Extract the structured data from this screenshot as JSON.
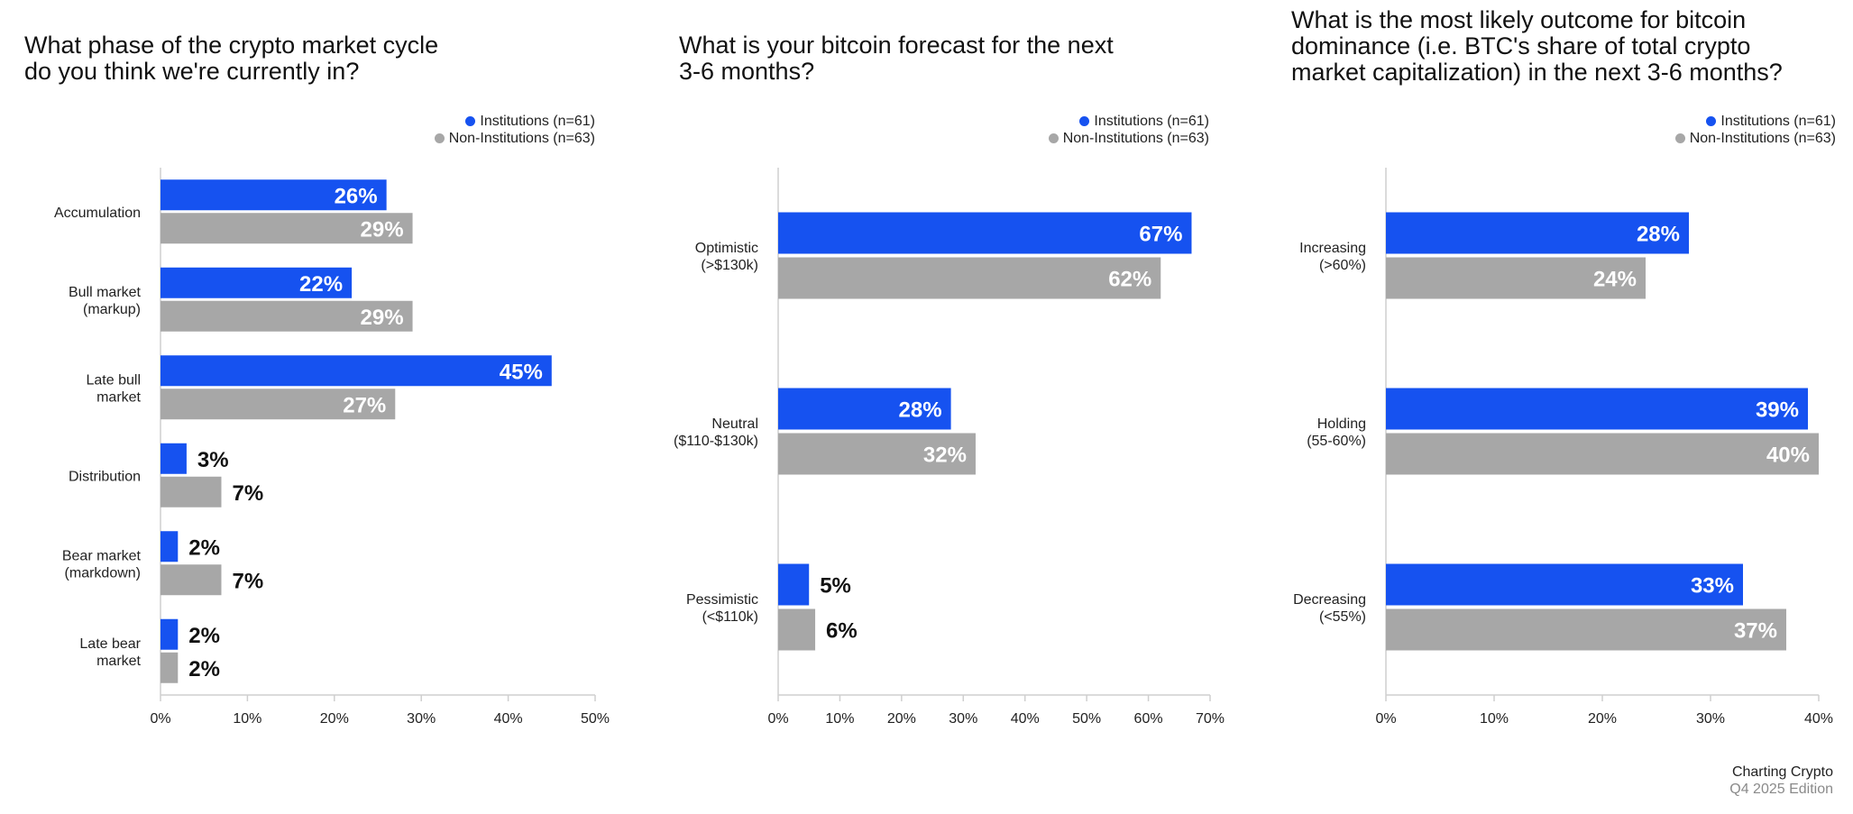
{
  "colors": {
    "institutions": "#1652f0",
    "non_institutions": "#a7a7a7",
    "axis": "#cfcfcf"
  },
  "legend": {
    "institutions": "Institutions (n=61)",
    "non_institutions": "Non-Institutions (n=63)"
  },
  "footer": {
    "line1": "Charting Crypto",
    "line2": "Q4 2025 Edition"
  },
  "chart_data": [
    {
      "type": "bar",
      "orientation": "horizontal",
      "title": "What phase of the crypto market cycle\ndo you think we're currently in?",
      "categories": [
        "Accumulation",
        "Bull market\n(markup)",
        "Late bull\nmarket",
        "Distribution",
        "Bear market\n(markdown)",
        "Late bear\nmarket"
      ],
      "series": [
        {
          "name": "Institutions (n=61)",
          "values": [
            26,
            22,
            45,
            3,
            2,
            2
          ]
        },
        {
          "name": "Non-Institutions (n=63)",
          "values": [
            29,
            29,
            27,
            7,
            7,
            2
          ]
        }
      ],
      "xlim": [
        0,
        50
      ],
      "ticks": [
        "0%",
        "10%",
        "20%",
        "30%",
        "40%",
        "50%"
      ],
      "value_suffix": "%",
      "legend_position": "top-right"
    },
    {
      "type": "bar",
      "orientation": "horizontal",
      "title": "What is your bitcoin forecast for the next\n3-6 months?",
      "categories": [
        "Optimistic\n(>$130k)",
        "Neutral\n($110-$130k)",
        "Pessimistic\n(<$110k)"
      ],
      "series": [
        {
          "name": "Institutions (n=61)",
          "values": [
            67,
            28,
            5
          ]
        },
        {
          "name": "Non-Institutions (n=63)",
          "values": [
            62,
            32,
            6
          ]
        }
      ],
      "xlim": [
        0,
        70
      ],
      "ticks": [
        "0%",
        "10%",
        "20%",
        "30%",
        "40%",
        "50%",
        "60%",
        "70%"
      ],
      "value_suffix": "%",
      "legend_position": "top-right"
    },
    {
      "type": "bar",
      "orientation": "horizontal",
      "title": "What is the most likely outcome for bitcoin\ndominance (i.e. BTC's share of total crypto\nmarket capitalization) in the next 3-6 months?",
      "categories": [
        "Increasing\n(>60%)",
        "Holding\n(55-60%)",
        "Decreasing\n(<55%)"
      ],
      "series": [
        {
          "name": "Institutions (n=61)",
          "values": [
            28,
            39,
            33
          ]
        },
        {
          "name": "Non-Institutions (n=63)",
          "values": [
            24,
            40,
            37
          ]
        }
      ],
      "xlim": [
        0,
        40
      ],
      "ticks": [
        "0%",
        "10%",
        "20%",
        "30%",
        "40%"
      ],
      "value_suffix": "%",
      "legend_position": "top-right"
    }
  ]
}
